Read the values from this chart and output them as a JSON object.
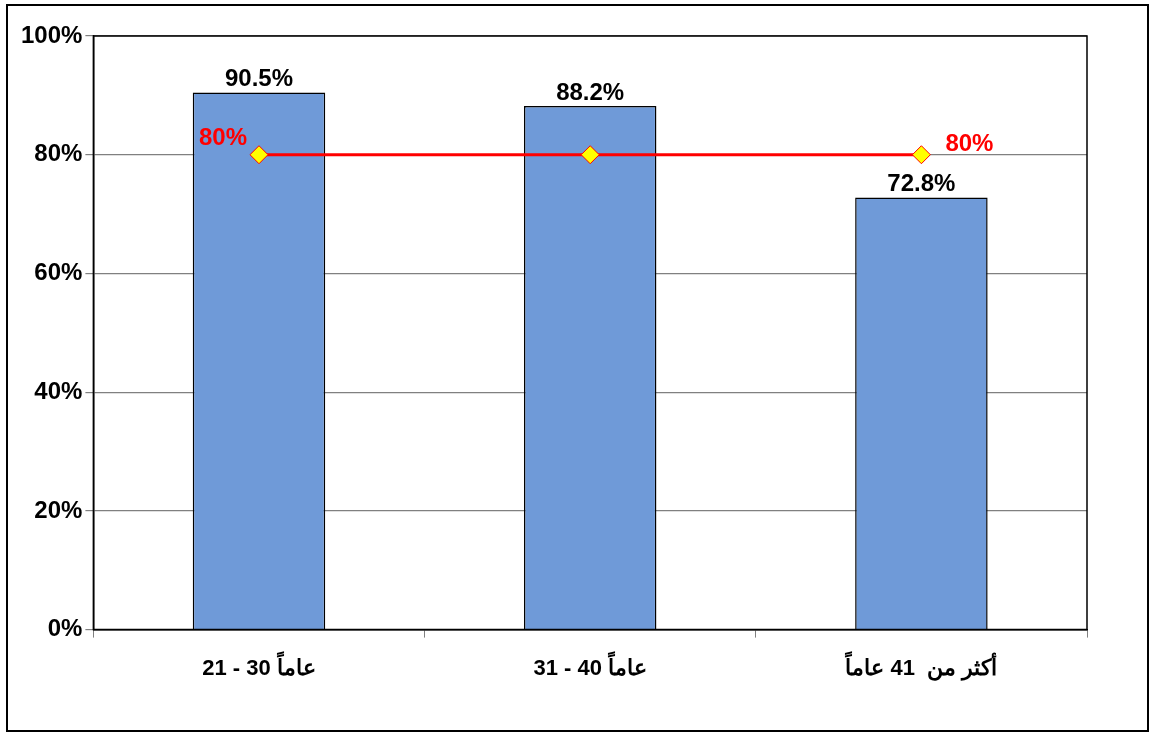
{
  "chart_data": {
    "type": "bar",
    "categories": [
      "21 - 30 عاماً",
      "31 - 40 عاماً",
      "أكثر من  41 عاماً"
    ],
    "series": [
      {
        "color": "#6f9ad8",
        "values": [
          90.5,
          88.2,
          72.8
        ],
        "value_labels": [
          "90.5%",
          "88.2%",
          "72.8%"
        ]
      },
      {
        "type": "line",
        "color": "#ff0000",
        "values": [
          80,
          80,
          80
        ],
        "value_labels": [
          "80%",
          null,
          "80%"
        ],
        "marker": "diamond"
      }
    ],
    "ylim": [
      0,
      100
    ],
    "yticks": [
      {
        "value": 0,
        "label": "0%"
      },
      {
        "value": 20,
        "label": "20%"
      },
      {
        "value": 40,
        "label": "40%"
      },
      {
        "value": 60,
        "label": "60%"
      },
      {
        "value": 80,
        "label": "80%"
      },
      {
        "value": 100,
        "label": "100%"
      }
    ],
    "grid": "y",
    "legend": false
  }
}
